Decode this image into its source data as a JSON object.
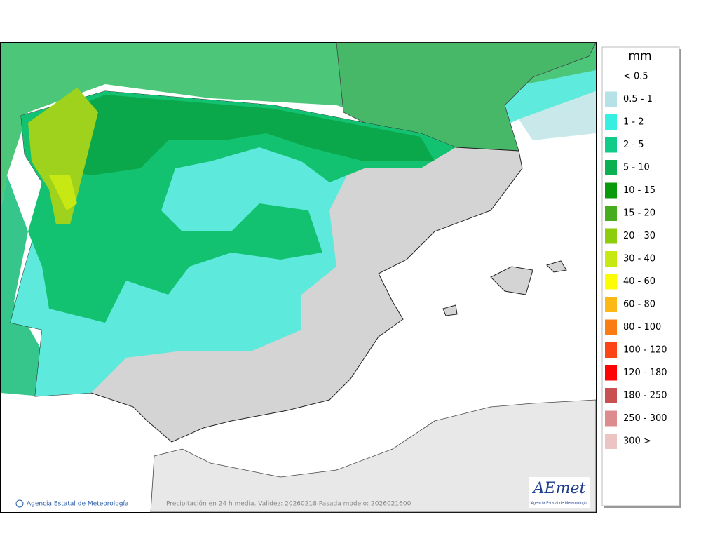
{
  "legend": {
    "unit": "mm",
    "items": [
      {
        "label": "< 0.5",
        "color": null
      },
      {
        "label": "0.5 - 1",
        "color": "#b4e2e6"
      },
      {
        "label": "1 - 2",
        "color": "#36efe0"
      },
      {
        "label": "2 - 5",
        "color": "#10cc88"
      },
      {
        "label": "5 - 10",
        "color": "#0bb150"
      },
      {
        "label": "10 - 15",
        "color": "#089a0c"
      },
      {
        "label": "15 - 20",
        "color": "#48ad1c"
      },
      {
        "label": "20 - 30",
        "color": "#8ccd0c"
      },
      {
        "label": "30 - 40",
        "color": "#c8e814"
      },
      {
        "label": "40 - 60",
        "color": "#fcfc04"
      },
      {
        "label": "60 - 80",
        "color": "#fcb814"
      },
      {
        "label": "80 - 100",
        "color": "#fc7c14"
      },
      {
        "label": "100 - 120",
        "color": "#fc4414"
      },
      {
        "label": "120 - 180",
        "color": "#fc0404"
      },
      {
        "label": "180 - 250",
        "color": "#c85050"
      },
      {
        "label": "250 - 300",
        "color": "#dc8c8c"
      },
      {
        "label": "300 >",
        "color": "#ecc4c4"
      }
    ]
  },
  "footer": {
    "credit": "Agencia Estatal de Meteorología",
    "caption": "Precipitación en 24 h media. Validez: 20260218 Pasada modelo: 2026021600"
  },
  "logo": {
    "name": "AEmet",
    "subtitle": "Agencia Estatal de Meteorología"
  }
}
